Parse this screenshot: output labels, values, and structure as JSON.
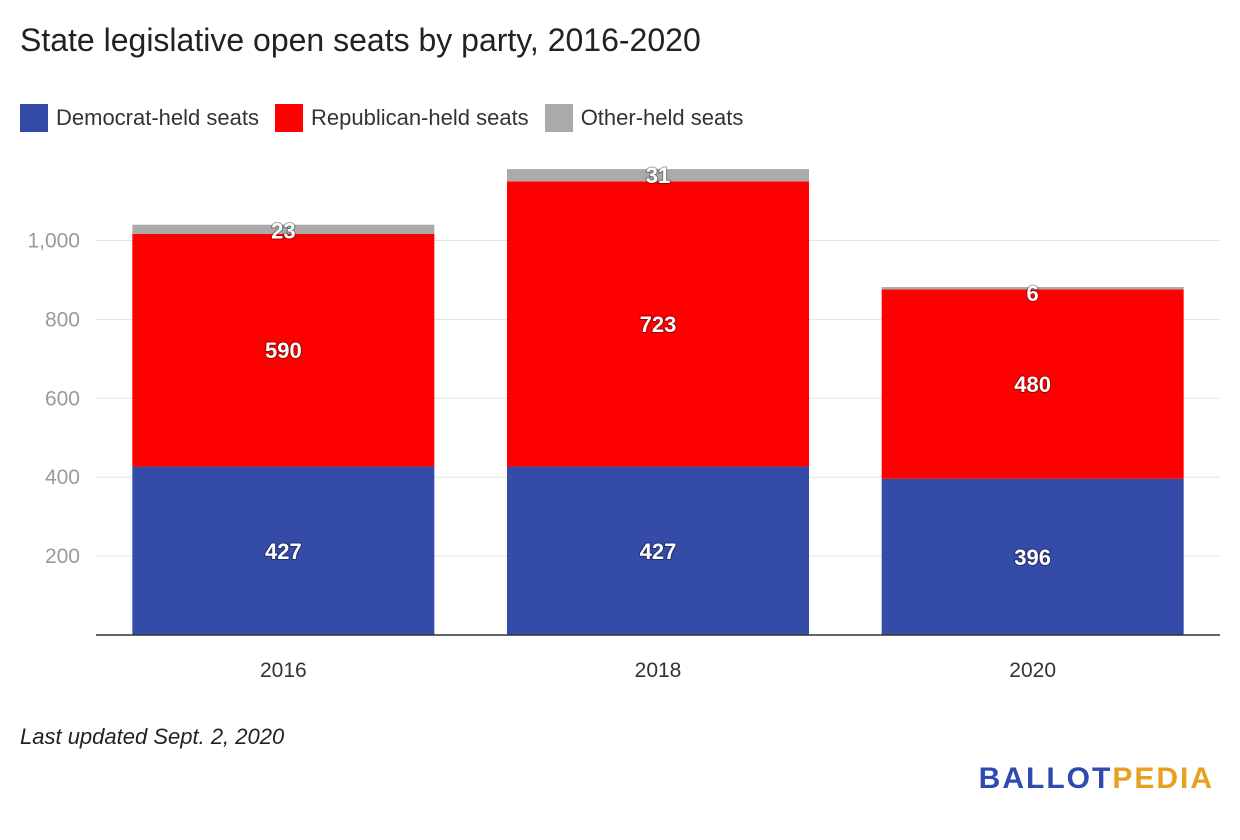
{
  "chart_data": {
    "type": "bar",
    "stacked": true,
    "title": "State legislative open seats by party, 2016-2020",
    "categories": [
      "2016",
      "2018",
      "2020"
    ],
    "series": [
      {
        "name": "Democrat-held seats",
        "values": [
          427,
          427,
          396
        ],
        "color": "#354ba8"
      },
      {
        "name": "Republican-held seats",
        "values": [
          590,
          723,
          480
        ],
        "color": "#ff0000"
      },
      {
        "name": "Other-held seats",
        "values": [
          23,
          31,
          6
        ],
        "color": "#aaaaaa"
      }
    ],
    "yticks": [
      200,
      400,
      600,
      800,
      1000
    ],
    "ytick_labels": [
      "200",
      "400",
      "600",
      "800",
      "1,000"
    ],
    "ylim": [
      0,
      1190
    ],
    "grid": true,
    "legend": "top-left"
  },
  "footnote": "Last updated Sept. 2, 2020",
  "brand": {
    "part1": "BALLOT",
    "part2": "PEDIA"
  }
}
